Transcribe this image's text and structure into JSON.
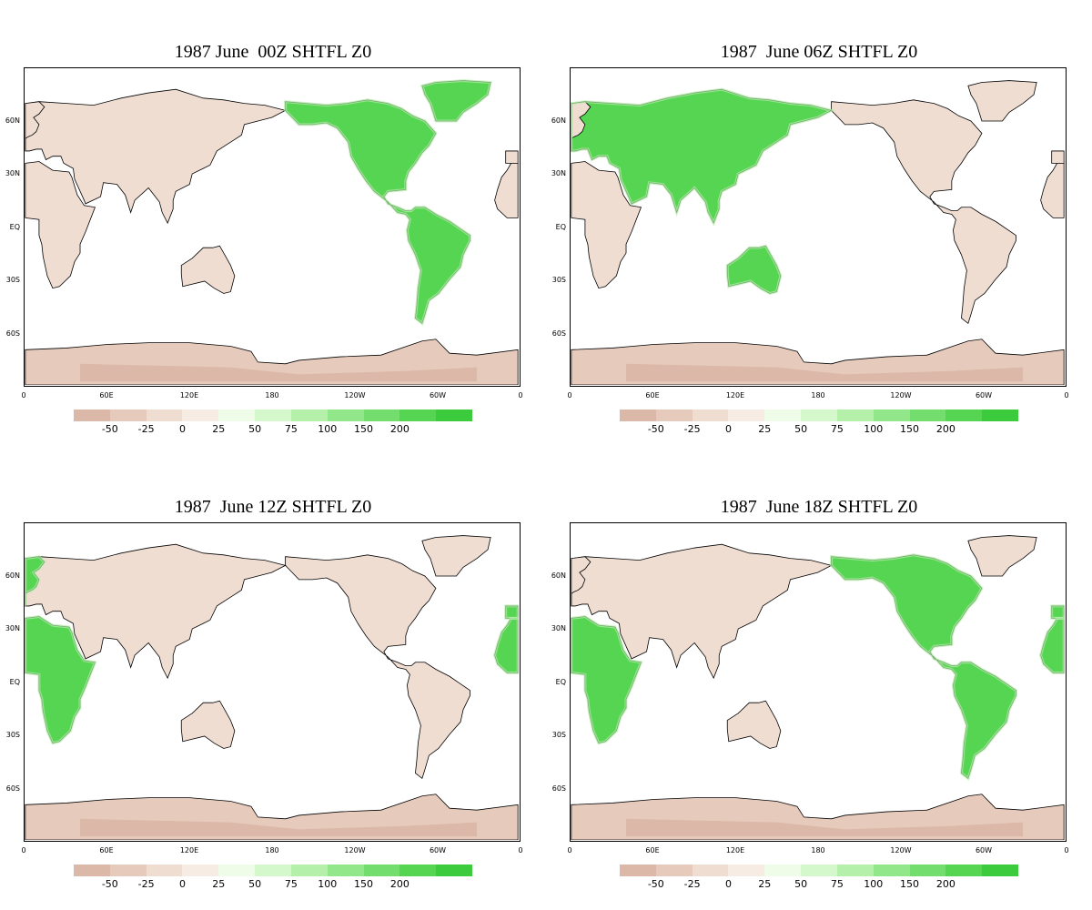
{
  "lat_labels": [
    "60N",
    "30N",
    "EQ",
    "30S",
    "60S"
  ],
  "lon_labels": [
    "0",
    "60E",
    "120E",
    "180",
    "120W",
    "60W",
    "0"
  ],
  "colorbar": {
    "colors": [
      "#dcb8a8",
      "#e6cbbd",
      "#efddd2",
      "#f7ece4",
      "#eefce8",
      "#d4f7cc",
      "#b4f0aa",
      "#93e78b",
      "#73de6d",
      "#55d551",
      "#3ccb3c"
    ],
    "labels": [
      "-50",
      "-25",
      "0",
      "25",
      "50",
      "75",
      "100",
      "150",
      "200"
    ]
  },
  "panels": [
    {
      "title": "1987 June  00Z SHTFL Z0",
      "heating_region": "americas"
    },
    {
      "title": "1987  June 06Z SHTFL Z0",
      "heating_region": "asia-australia"
    },
    {
      "title": "1987  June 12Z SHTFL Z0",
      "heating_region": "europe-africa"
    },
    {
      "title": "1987  June 18Z SHTFL Z0",
      "heating_region": "americas-africa"
    }
  ]
}
